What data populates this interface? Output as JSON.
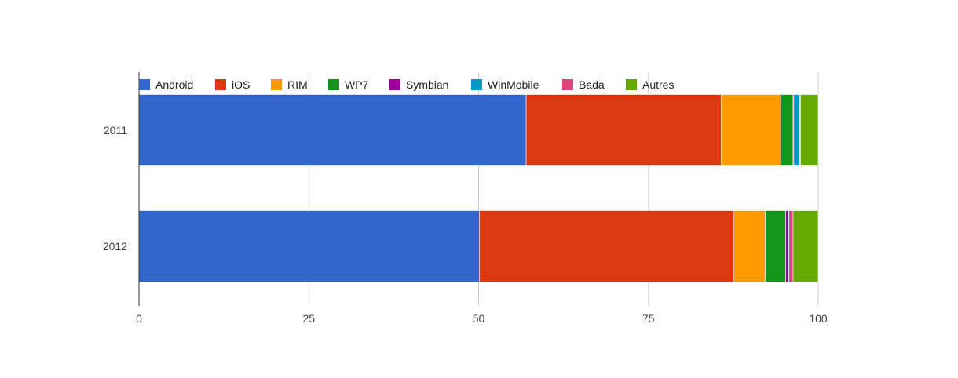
{
  "chart_data": {
    "type": "bar",
    "orientation": "horizontal",
    "stacked": true,
    "categories": [
      "2011",
      "2012"
    ],
    "series": [
      {
        "name": "Android",
        "color": "#3366cc",
        "values": [
          57.0,
          50.1
        ]
      },
      {
        "name": "iOS",
        "color": "#dc3912",
        "values": [
          28.7,
          37.5
        ]
      },
      {
        "name": "RIM",
        "color": "#ff9900",
        "values": [
          8.8,
          4.6
        ]
      },
      {
        "name": "WP7",
        "color": "#109618",
        "values": [
          1.8,
          3.0
        ]
      },
      {
        "name": "Symbian",
        "color": "#990099",
        "values": [
          0.1,
          0.4
        ]
      },
      {
        "name": "WinMobile",
        "color": "#0099c6",
        "values": [
          0.9,
          0.1
        ]
      },
      {
        "name": "Bada",
        "color": "#dd4477",
        "values": [
          0.1,
          0.6
        ]
      },
      {
        "name": "Autres",
        "color": "#66aa00",
        "values": [
          2.6,
          3.7
        ]
      }
    ],
    "xlim": [
      0,
      100
    ],
    "xticks": [
      "0",
      "25",
      "50",
      "75",
      "100"
    ],
    "grid": true,
    "legend_position": "top",
    "title": "",
    "xlabel": "",
    "ylabel": ""
  }
}
